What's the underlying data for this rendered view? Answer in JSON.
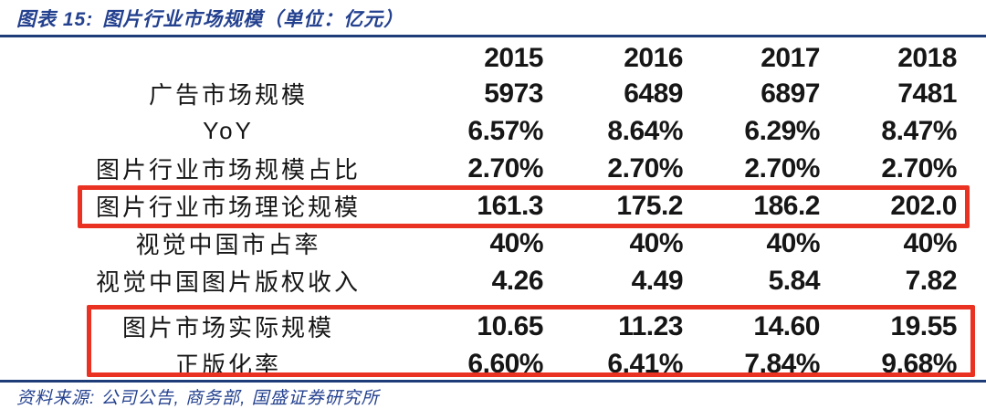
{
  "figure": {
    "caption_label": "图表 15:",
    "caption_title": "图片行业市场规模（单位：亿元）"
  },
  "chart_data": {
    "type": "table",
    "title": "图片行业市场规模",
    "unit": "亿元",
    "years": [
      "2015",
      "2016",
      "2017",
      "2018"
    ],
    "rows": [
      {
        "label": "广告市场规模",
        "values": [
          "5973",
          "6489",
          "6897",
          "7481"
        ],
        "highlight": false
      },
      {
        "label": "YoY",
        "values": [
          "6.57%",
          "8.64%",
          "6.29%",
          "8.47%"
        ],
        "highlight": false
      },
      {
        "label": "图片行业市场规模占比",
        "values": [
          "2.70%",
          "2.70%",
          "2.70%",
          "2.70%"
        ],
        "highlight": false
      },
      {
        "label": "图片行业市场理论规模",
        "values": [
          "161.3",
          "175.2",
          "186.2",
          "202.0"
        ],
        "highlight": true
      },
      {
        "label": "视觉中国市占率",
        "values": [
          "40%",
          "40%",
          "40%",
          "40%"
        ],
        "highlight": false
      },
      {
        "label": "视觉中国图片版权收入",
        "values": [
          "4.26",
          "4.49",
          "5.84",
          "7.82"
        ],
        "highlight": false
      },
      {
        "label": "图片市场实际规模",
        "values": [
          "10.65",
          "11.23",
          "14.60",
          "19.55"
        ],
        "highlight": true
      },
      {
        "label": "正版化率",
        "values": [
          "6.60%",
          "6.41%",
          "7.84%",
          "9.68%"
        ],
        "highlight": true
      }
    ],
    "highlighted_row_labels": [
      "图片行业市场理论规模",
      "图片市场实际规模",
      "正版化率"
    ]
  },
  "footer": {
    "source": "资料来源: 公司公告, 商务部, 国盛证券研究所"
  },
  "colors": {
    "accent_blue": "#24418F",
    "rule_navy": "#1E3C78",
    "highlight_red": "#EA3223",
    "text_dark": "#161616"
  }
}
